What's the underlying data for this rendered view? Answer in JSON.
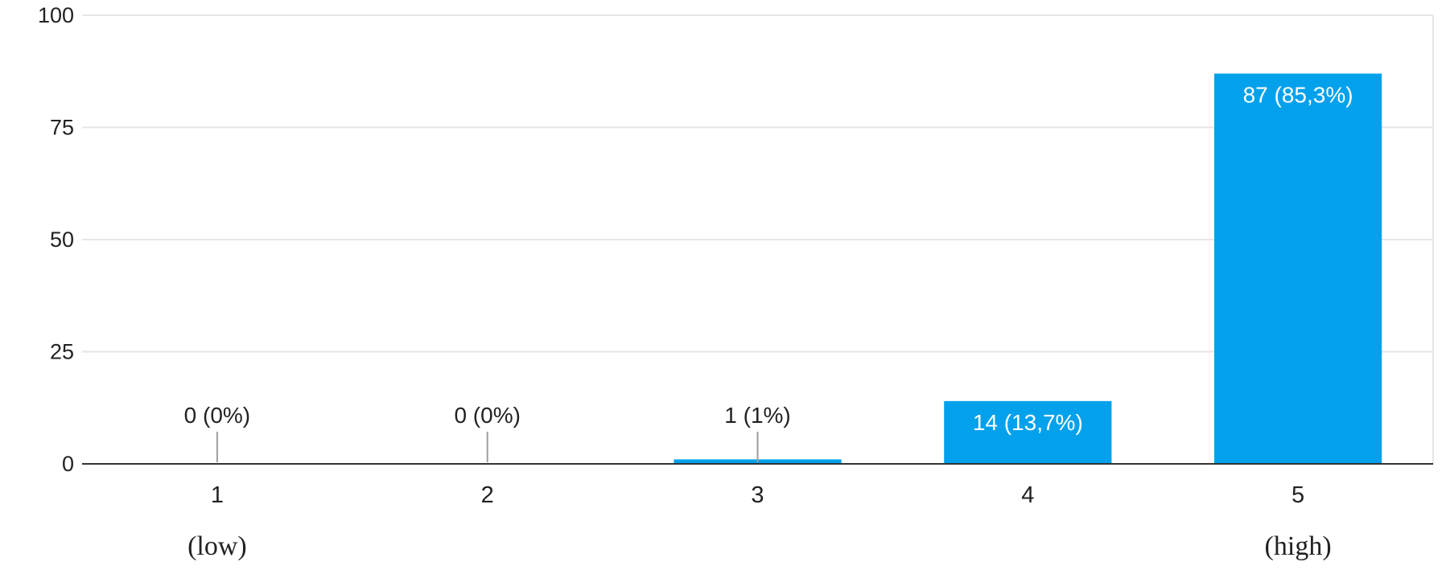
{
  "chart_data": {
    "type": "bar",
    "categories": [
      "1",
      "2",
      "3",
      "4",
      "5"
    ],
    "category_sublabels": [
      "(low)",
      "",
      "",
      "",
      "(high)"
    ],
    "values": [
      0,
      0,
      1,
      14,
      87
    ],
    "data_labels": [
      "0 (0%)",
      "0 (0%)",
      "1 (1%)",
      "14 (13,7%)",
      "87 (85,3%)"
    ],
    "ylim": [
      0,
      100
    ],
    "yticks": [
      0,
      25,
      50,
      75,
      100
    ],
    "grid": true,
    "bar_color": "#03a1ec"
  }
}
